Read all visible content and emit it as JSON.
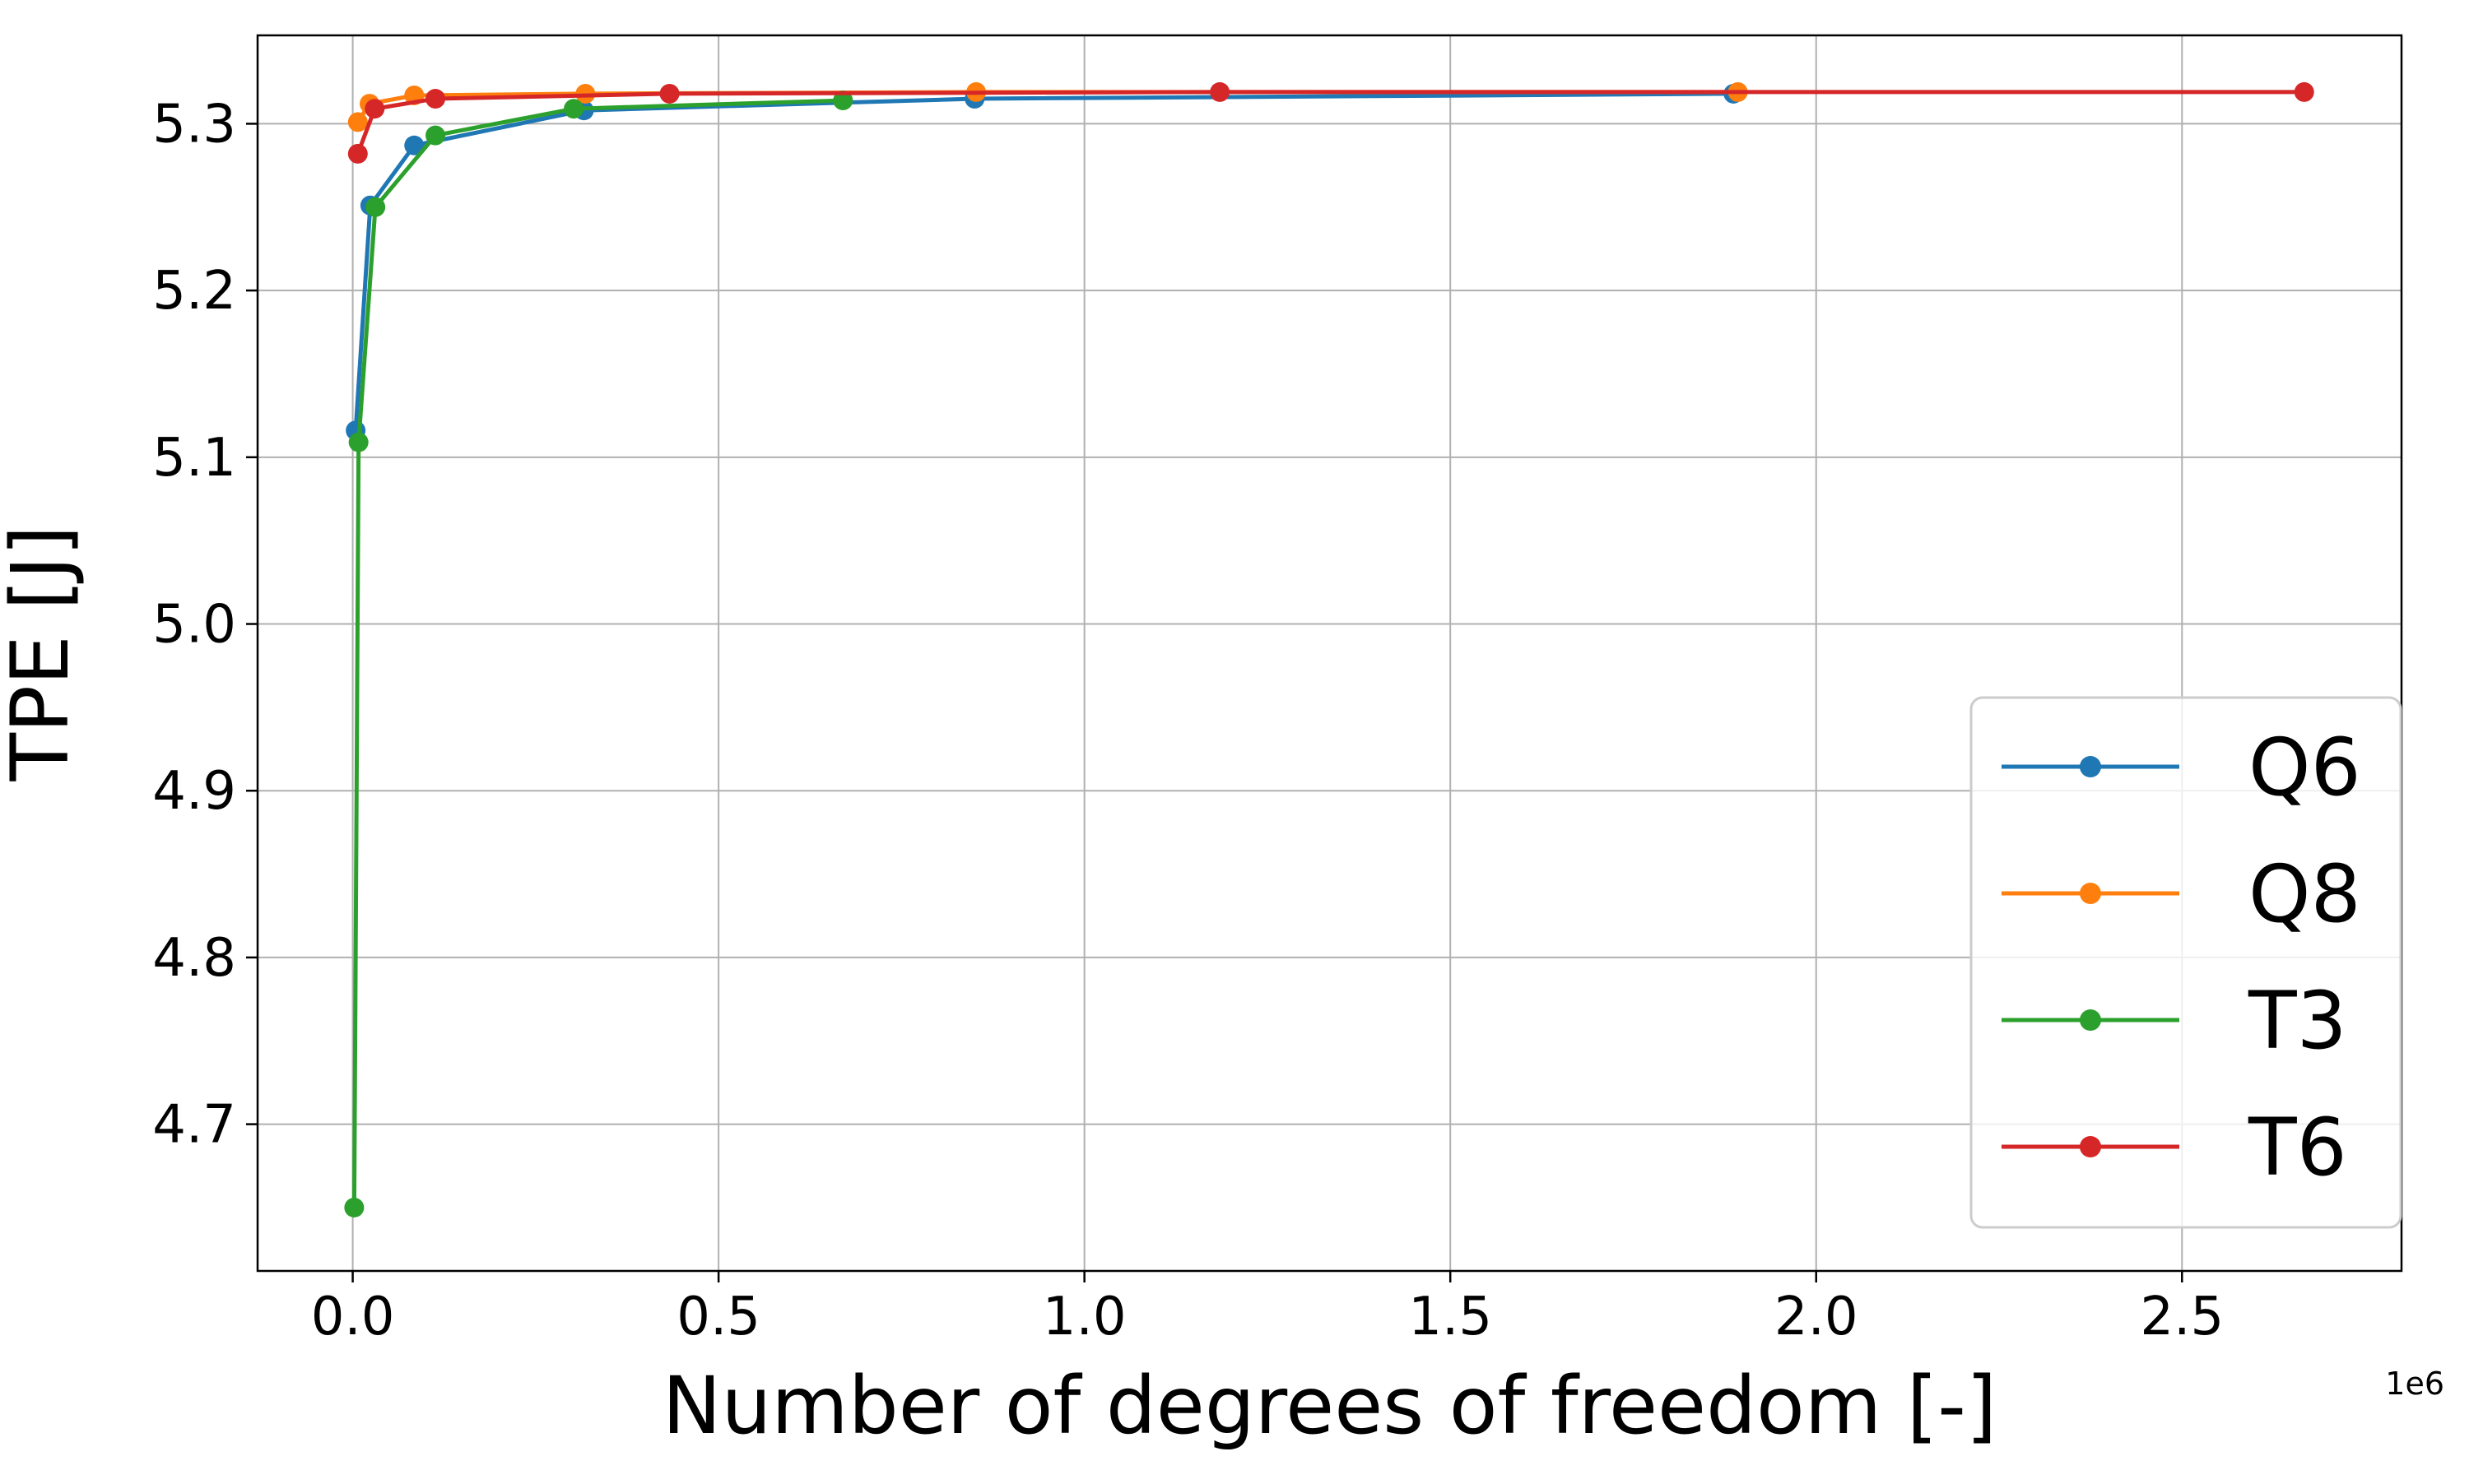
{
  "chart_data": {
    "type": "line",
    "title": "",
    "xlabel": "Number of degrees of freedom [-]",
    "ylabel": "TPE [J]",
    "x_offset_label": "1e6",
    "x_scale": 1000000,
    "xlim": [
      -130000,
      2800000
    ],
    "ylim": [
      4.612,
      5.353
    ],
    "x_ticks": [
      0,
      500000,
      1000000,
      1500000,
      2000000,
      2500000
    ],
    "x_tick_labels": [
      "0.0",
      "0.5",
      "1.0",
      "1.5",
      "2.0",
      "2.5"
    ],
    "y_ticks": [
      4.7,
      4.8,
      4.9,
      5.0,
      5.1,
      5.2,
      5.3
    ],
    "y_tick_labels": [
      "4.7",
      "4.8",
      "4.9",
      "5.0",
      "5.1",
      "5.2",
      "5.3"
    ],
    "grid": true,
    "legend_position": "lower-right",
    "series": [
      {
        "name": "Q6",
        "color": "#1f77b4",
        "x": [
          4000,
          24000,
          84000,
          316000,
          850000,
          1887000
        ],
        "y": [
          5.116,
          5.251,
          5.287,
          5.308,
          5.315,
          5.318
        ]
      },
      {
        "name": "Q8",
        "color": "#ff7f0e",
        "x": [
          7000,
          23000,
          84000,
          318000,
          852000,
          1893000
        ],
        "y": [
          5.301,
          5.312,
          5.317,
          5.318,
          5.319,
          5.319
        ]
      },
      {
        "name": "T3",
        "color": "#2ca02c",
        "x": [
          2000,
          8000,
          31000,
          113000,
          302000,
          670000
        ],
        "y": [
          4.65,
          5.109,
          5.25,
          5.293,
          5.309,
          5.314
        ]
      },
      {
        "name": "T6",
        "color": "#d62728",
        "x": [
          7000,
          30000,
          113000,
          433000,
          1185000,
          2667000
        ],
        "y": [
          5.282,
          5.309,
          5.315,
          5.318,
          5.319,
          5.319
        ]
      }
    ]
  }
}
